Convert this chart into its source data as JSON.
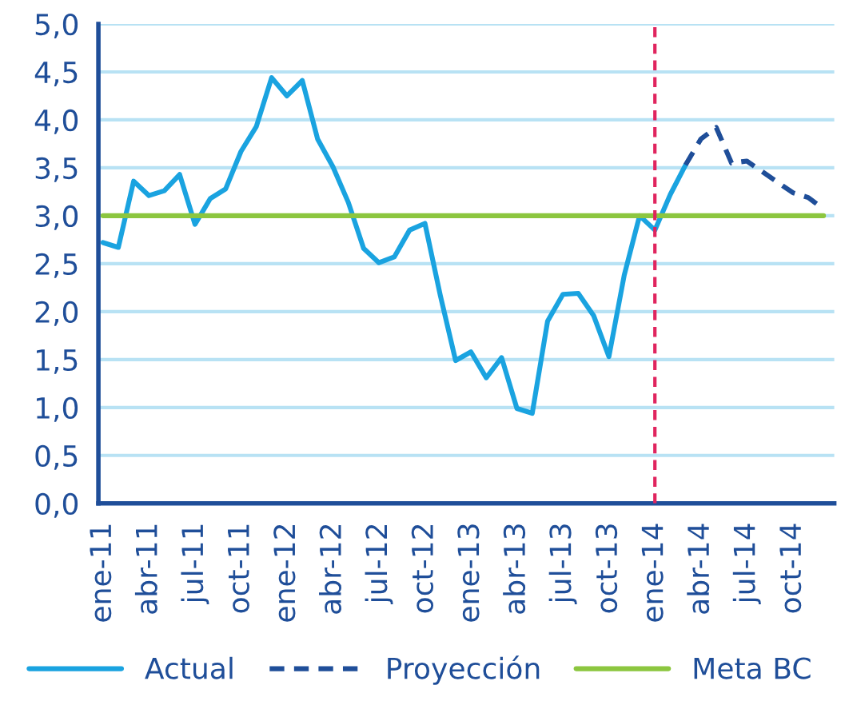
{
  "chart_data": {
    "type": "line",
    "categories": [
      "ene-11",
      null,
      null,
      "abr-11",
      null,
      null,
      "jul-11",
      null,
      null,
      "oct-11",
      null,
      null,
      "ene-12",
      null,
      null,
      "abr-12",
      null,
      null,
      "jul-12",
      null,
      null,
      "oct-12",
      null,
      null,
      "ene-13",
      null,
      null,
      "abr-13",
      null,
      null,
      "jul-13",
      null,
      null,
      "oct-13",
      null,
      null,
      "ene-14",
      null,
      null,
      "abr-14",
      null,
      null,
      "jul-14",
      null,
      null,
      "oct-14",
      null,
      null
    ],
    "series": [
      {
        "name": "Actual",
        "color": "#1aa3e0",
        "line_style": "solid",
        "values": [
          2.72,
          2.67,
          3.36,
          3.21,
          3.26,
          3.43,
          2.91,
          3.18,
          3.28,
          3.67,
          3.93,
          4.44,
          4.25,
          4.41,
          3.8,
          3.51,
          3.14,
          2.66,
          2.51,
          2.57,
          2.85,
          2.92,
          2.17,
          1.49,
          1.58,
          1.31,
          1.52,
          0.99,
          0.94,
          1.9,
          2.18,
          2.19,
          1.96,
          1.53,
          2.38,
          3.0,
          2.85,
          3.22,
          3.53,
          null,
          null,
          null,
          null,
          null,
          null,
          null,
          null,
          null
        ]
      },
      {
        "name": "Proyección",
        "color": "#1f4e99",
        "line_style": "dashed",
        "values": [
          null,
          null,
          null,
          null,
          null,
          null,
          null,
          null,
          null,
          null,
          null,
          null,
          null,
          null,
          null,
          null,
          null,
          null,
          null,
          null,
          null,
          null,
          null,
          null,
          null,
          null,
          null,
          null,
          null,
          null,
          null,
          null,
          null,
          null,
          null,
          null,
          null,
          null,
          3.53,
          3.8,
          3.92,
          3.55,
          3.57,
          3.46,
          3.35,
          3.24,
          3.19,
          3.07
        ]
      },
      {
        "name": "Meta BC",
        "color": "#8cc63f",
        "line_style": "solid",
        "values": [
          3.0,
          3.0,
          3.0,
          3.0,
          3.0,
          3.0,
          3.0,
          3.0,
          3.0,
          3.0,
          3.0,
          3.0,
          3.0,
          3.0,
          3.0,
          3.0,
          3.0,
          3.0,
          3.0,
          3.0,
          3.0,
          3.0,
          3.0,
          3.0,
          3.0,
          3.0,
          3.0,
          3.0,
          3.0,
          3.0,
          3.0,
          3.0,
          3.0,
          3.0,
          3.0,
          3.0,
          3.0,
          3.0,
          3.0,
          3.0,
          3.0,
          3.0,
          3.0,
          3.0,
          3.0,
          3.0,
          3.0,
          3.0
        ]
      }
    ],
    "ylim": [
      0,
      5
    ],
    "yticks": [
      {
        "value": 0,
        "label": "0,0"
      },
      {
        "value": 0.5,
        "label": "0,5"
      },
      {
        "value": 1,
        "label": "1,0"
      },
      {
        "value": 1.5,
        "label": "1,5"
      },
      {
        "value": 2,
        "label": "2,0"
      },
      {
        "value": 2.5,
        "label": "2,5"
      },
      {
        "value": 3,
        "label": "3,0"
      },
      {
        "value": 3.5,
        "label": "3,5"
      },
      {
        "value": 4,
        "label": "4,0"
      },
      {
        "value": 4.5,
        "label": "4,5"
      },
      {
        "value": 5,
        "label": "5,0"
      }
    ],
    "ref_lines": [
      {
        "axis": "x",
        "value": "ene-14",
        "color": "#e0245e",
        "line_style": "dashed"
      }
    ],
    "grid": "y",
    "legend": "bottom",
    "marker": "none"
  }
}
